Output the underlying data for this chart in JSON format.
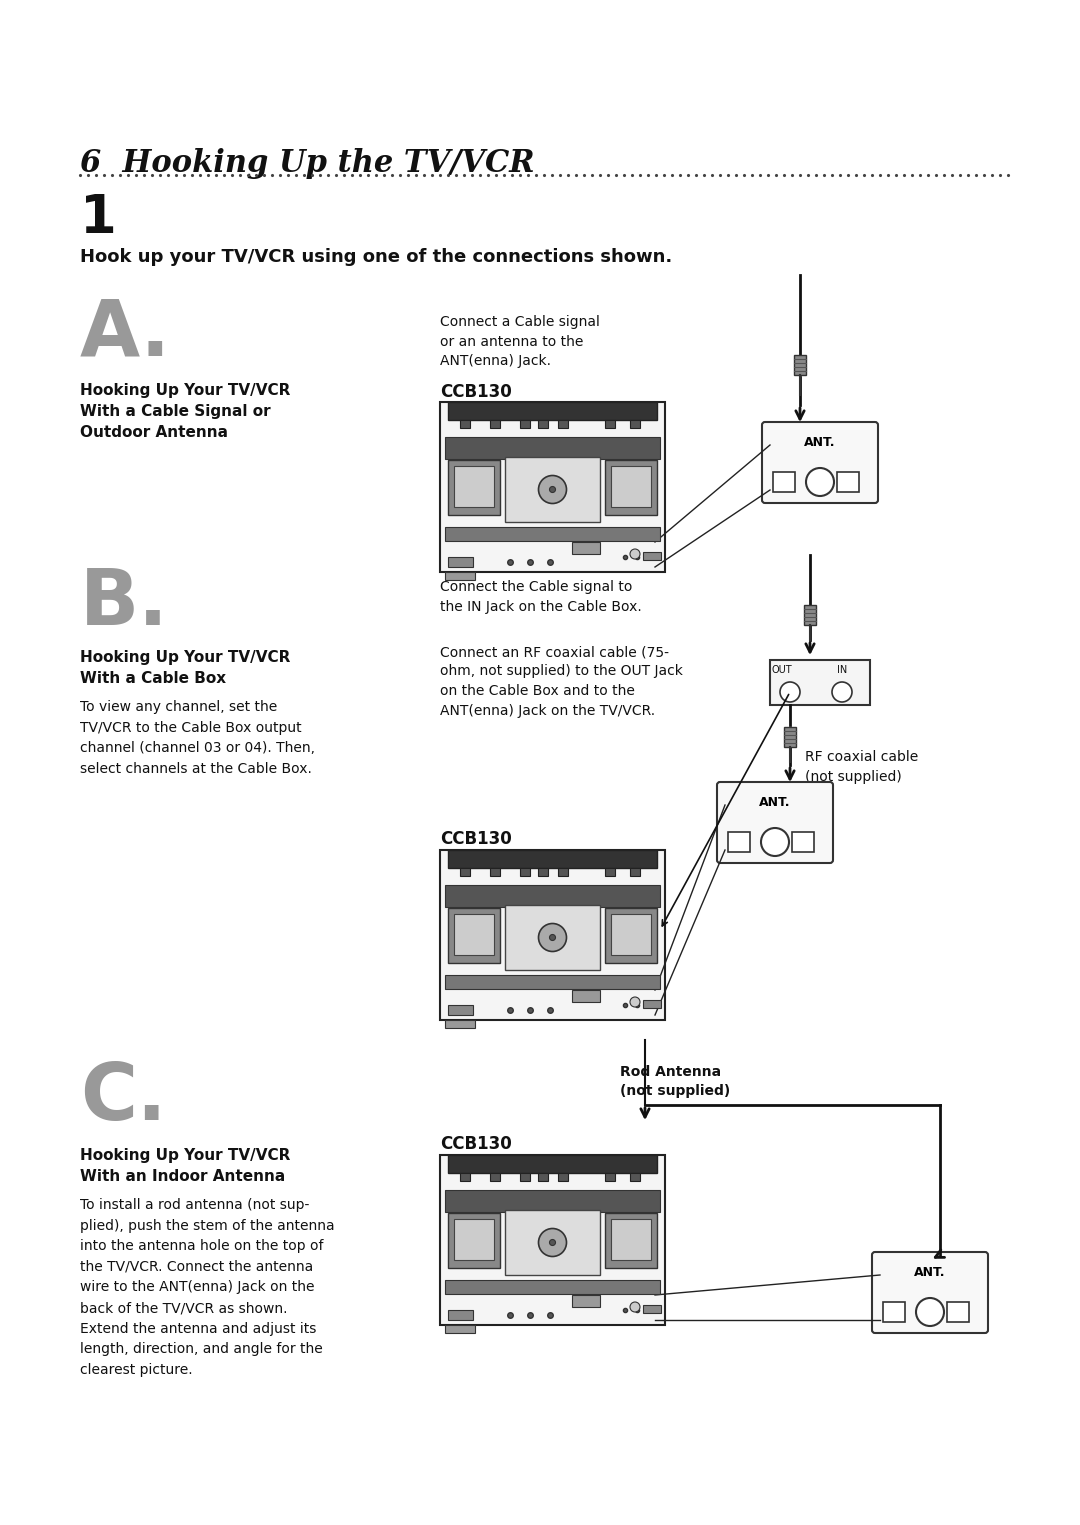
{
  "title": "6  Hooking Up the TV/VCR",
  "step1": "1",
  "step1_text": "Hook up your TV/VCR using one of the connections shown.",
  "section_A_letter": "A.",
  "section_A_title": "Hooking Up Your TV/VCR\nWith a Cable Signal or\nOutdoor Antenna",
  "section_A_note": "Connect a Cable signal\nor an antenna to the\nANT(enna) Jack.",
  "section_A_label": "CCB130",
  "section_B_letter": "B.",
  "section_B_title": "Hooking Up Your TV/VCR\nWith a Cable Box",
  "section_B_body": "To view any channel, set the\nTV/VCR to the Cable Box output\nchannel (channel 03 or 04). Then,\nselect channels at the Cable Box.",
  "section_B_note1": "Connect the Cable signal to\nthe IN Jack on the Cable Box.",
  "section_B_note2": "Connect an RF coaxial cable (75-\nohm, not supplied) to the OUT Jack\non the Cable Box and to the\nANT(enna) Jack on the TV/VCR.",
  "section_B_label": "CCB130",
  "section_B_rf_label": "RF coaxial cable\n(not supplied)",
  "section_C_letter": "C.",
  "section_C_title": "Hooking Up Your TV/VCR\nWith an Indoor Antenna",
  "section_C_body": "To install a rod antenna (not sup-\nplied), push the stem of the antenna\ninto the antenna hole on the top of\nthe TV/VCR. Connect the antenna\nwire to the ANT(enna) Jack on the\nback of the TV/VCR as shown.\nExtend the antenna and adjust its\nlength, direction, and angle for the\nclearest picture.",
  "section_C_rod_label": "Rod Antenna\n(not supplied)",
  "section_C_label": "CCB130",
  "bg_color": "#ffffff",
  "text_color": "#000000",
  "section_letter_color": "#999999",
  "ant_label": "ANT."
}
